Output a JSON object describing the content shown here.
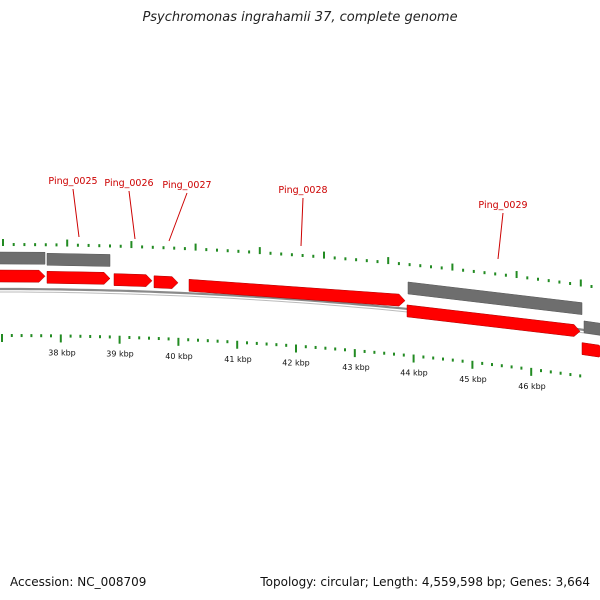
{
  "title": "Psychromonas ingrahamii 37, complete genome",
  "footer": {
    "accession": "Accession: NC_008709",
    "summary": "Topology: circular; Length: 4,559,598 bp; Genes: 3,664"
  },
  "colors": {
    "gene_fill": "#ff0000",
    "gene_label": "#cc0000",
    "grey_track": "#6e6e6e",
    "backbone": "#8a8a8a",
    "tick": "#228b22"
  },
  "genes": [
    {
      "label": "Ping_0025"
    },
    {
      "label": "Ping_0026"
    },
    {
      "label": "Ping_0027"
    },
    {
      "label": "Ping_0028"
    },
    {
      "label": "Ping_0029"
    }
  ],
  "kbp_labels": [
    "38 kbp",
    "39 kbp",
    "40 kbp",
    "41 kbp",
    "42 kbp",
    "43 kbp",
    "44 kbp",
    "45 kbp",
    "46 kbp"
  ]
}
